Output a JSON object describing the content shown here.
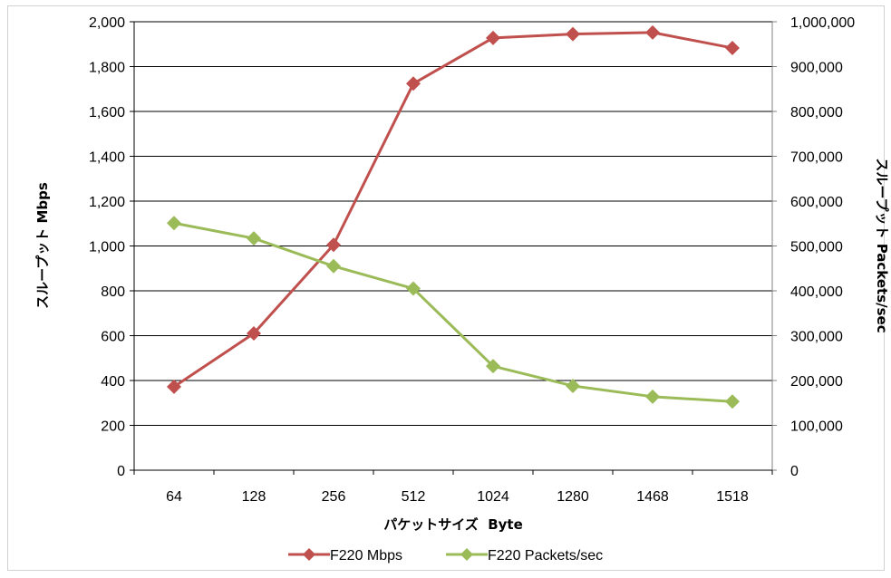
{
  "chart_data": {
    "type": "line",
    "categories": [
      "64",
      "128",
      "256",
      "512",
      "1024",
      "1280",
      "1468",
      "1518"
    ],
    "series": [
      {
        "name": "F220 Mbps",
        "axis": "left",
        "color": "#c0504d",
        "marker": "diamond",
        "values": [
          372,
          610,
          1005,
          1724,
          1928,
          1945,
          1952,
          1883
        ]
      },
      {
        "name": "F220 Packets/sec",
        "axis": "right",
        "color": "#9bbb59",
        "marker": "diamond",
        "values": [
          551000,
          517000,
          455000,
          405000,
          232000,
          188000,
          164000,
          153000
        ]
      }
    ],
    "xlabel": "パケットサイズ  Byte",
    "ylabel": "スループット Mbps",
    "y2label": "スループット Packets/sec",
    "ylim": [
      0,
      2000
    ],
    "y2lim": [
      0,
      1000000
    ],
    "yticks": [
      "0",
      "200",
      "400",
      "600",
      "800",
      "1,000",
      "1,200",
      "1,400",
      "1,600",
      "1,800",
      "2,000"
    ],
    "y2ticks": [
      "0",
      "100,000",
      "200,000",
      "300,000",
      "400,000",
      "500,000",
      "600,000",
      "700,000",
      "800,000",
      "900,000",
      "1,000,000"
    ],
    "grid": true,
    "legend": "bottom"
  }
}
